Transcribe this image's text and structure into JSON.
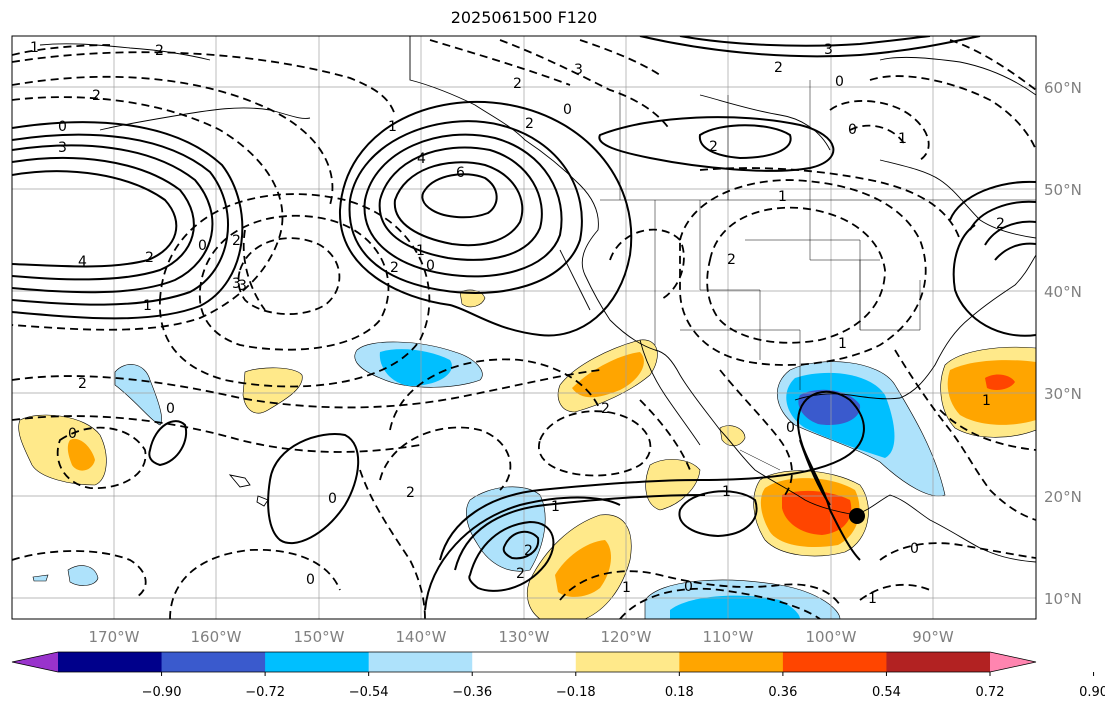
{
  "title": "2025061500 F120",
  "lon_labels": [
    "170°W",
    "160°W",
    "150°W",
    "140°W",
    "130°W",
    "120°W",
    "110°W",
    "100°W",
    "90°W"
  ],
  "lat_labels": [
    "60°N",
    "50°N",
    "40°N",
    "30°N",
    "20°N",
    "10°N"
  ],
  "colorbar": {
    "colors": [
      "#9933cc",
      "#00008b",
      "#3a5acd",
      "#00bfff",
      "#aee2fb",
      "#ffffff",
      "#ffe98a",
      "#ffa500",
      "#ff4500",
      "#b22222",
      "#ff85b0"
    ],
    "tick_labels": [
      "−0.90",
      "−0.72",
      "−0.54",
      "−0.36",
      "−0.18",
      "0.18",
      "0.36",
      "0.54",
      "0.72",
      "0.90"
    ]
  },
  "contour_labels": [
    "1",
    "2",
    "2",
    "0",
    "3",
    "4",
    "3",
    "6",
    "2",
    "2",
    "3",
    "0",
    "2",
    "0",
    "1",
    "4",
    "2",
    "1",
    "0",
    "2",
    "1",
    "3",
    "2",
    "1",
    "0",
    "2",
    "0",
    "0",
    "0",
    "2",
    "0",
    "1",
    "2",
    "1",
    "2",
    "0",
    "1",
    "0",
    "2",
    "1",
    "1",
    "0",
    "1",
    "2",
    "0",
    "2",
    "2",
    "3",
    "1"
  ],
  "marker": {
    "name": "storm-position"
  }
}
